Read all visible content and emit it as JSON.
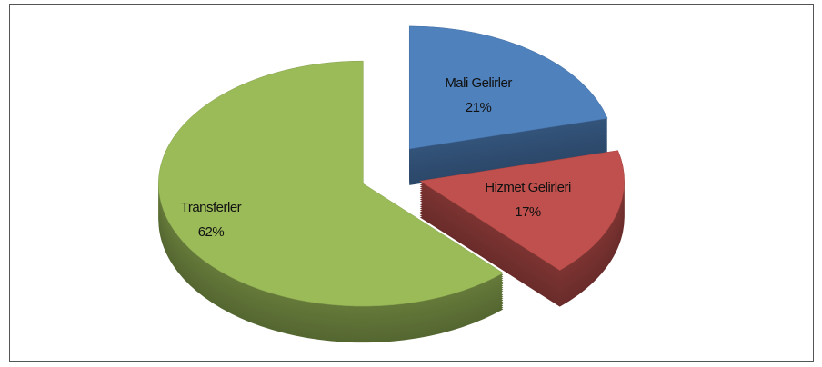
{
  "chart_data": {
    "type": "pie",
    "categories": [
      "Mali Gelirler",
      "Hizmet Gelirleri",
      "Transferler"
    ],
    "values": [
      21,
      17,
      62
    ],
    "value_labels": [
      "21%",
      "17%",
      "62%"
    ],
    "colors": [
      "#4f81bd",
      "#c0504d",
      "#9bbb59"
    ]
  }
}
